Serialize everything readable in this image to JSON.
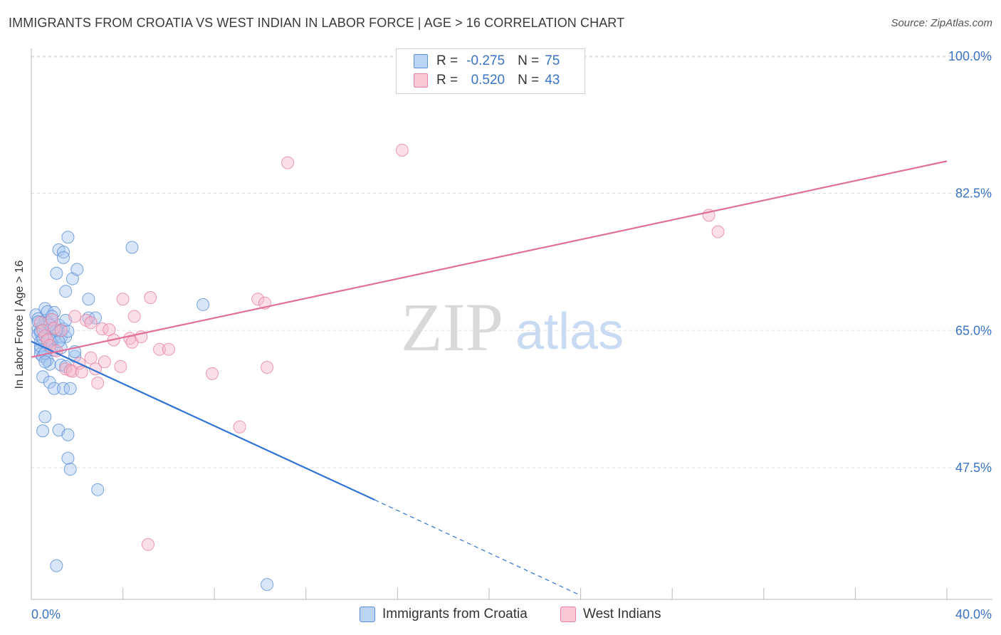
{
  "title": "IMMIGRANTS FROM CROATIA VS WEST INDIAN IN LABOR FORCE | AGE > 16 CORRELATION CHART",
  "source": "Source: ZipAtlas.com",
  "watermark": {
    "zip": "ZIP",
    "atlas": "atlas"
  },
  "legend": {
    "rows": [
      {
        "r_label": "R =",
        "r_value": "-0.275",
        "n_label": "N =",
        "n_value": "75"
      },
      {
        "r_label": "R =",
        "r_value": "0.520",
        "n_label": "N =",
        "n_value": "43"
      }
    ]
  },
  "bottom_legend": [
    "Immigrants from Croatia",
    "West Indians"
  ],
  "colors": {
    "blue_fill": "#a9c7f0",
    "blue_stroke": "#5b8fd6",
    "blue_line": "#2f74d0",
    "pink_fill": "#f6b8cb",
    "pink_stroke": "#e6819f",
    "pink_line": "#e0709a",
    "tick_label": "#3a74c4",
    "grid": "#dddddd"
  },
  "chart_data": {
    "type": "scatter",
    "xlabel": "",
    "ylabel": "In Labor Force | Age > 16",
    "xlim": [
      0,
      40
    ],
    "ylim": [
      30.7,
      100.8
    ],
    "x_tick_labels": [
      "0.0%",
      "40.0%"
    ],
    "y_ticks": [
      47.5,
      65.0,
      82.5,
      100.0
    ],
    "y_tick_labels": [
      "47.5%",
      "65.0%",
      "82.5%",
      "100.0%"
    ],
    "grid": true,
    "series": [
      {
        "name": "Immigrants from Croatia",
        "color": "blue",
        "points": [
          [
            0.2,
            67.0
          ],
          [
            0.3,
            66.5
          ],
          [
            0.3,
            65.2
          ],
          [
            0.4,
            64.6
          ],
          [
            0.4,
            63.6
          ],
          [
            0.4,
            62.6
          ],
          [
            0.4,
            62.0
          ],
          [
            0.5,
            61.7
          ],
          [
            0.5,
            59.1
          ],
          [
            0.5,
            52.2
          ],
          [
            0.6,
            67.8
          ],
          [
            0.6,
            66.2
          ],
          [
            0.6,
            64.8
          ],
          [
            0.6,
            54.0
          ],
          [
            0.7,
            67.4
          ],
          [
            0.7,
            63.8
          ],
          [
            0.7,
            61.2
          ],
          [
            0.8,
            60.7
          ],
          [
            0.8,
            58.4
          ],
          [
            0.9,
            66.4
          ],
          [
            0.9,
            65.3
          ],
          [
            0.9,
            63.4
          ],
          [
            0.9,
            62.9
          ],
          [
            1.0,
            67.3
          ],
          [
            1.0,
            64.3
          ],
          [
            1.0,
            57.6
          ],
          [
            1.1,
            72.3
          ],
          [
            1.1,
            35.0
          ],
          [
            1.2,
            75.3
          ],
          [
            1.2,
            65.7
          ],
          [
            1.2,
            64.9
          ],
          [
            1.2,
            52.3
          ],
          [
            1.3,
            64.1
          ],
          [
            1.3,
            60.6
          ],
          [
            1.4,
            75.0
          ],
          [
            1.4,
            74.3
          ],
          [
            1.4,
            65.2
          ],
          [
            1.4,
            57.6
          ],
          [
            1.5,
            64.2
          ],
          [
            1.5,
            60.4
          ],
          [
            1.5,
            70.0
          ],
          [
            1.6,
            76.9
          ],
          [
            1.6,
            64.9
          ],
          [
            1.6,
            51.7
          ],
          [
            1.6,
            48.7
          ],
          [
            1.7,
            47.3
          ],
          [
            1.7,
            57.6
          ],
          [
            1.8,
            71.6
          ],
          [
            1.9,
            61.7
          ],
          [
            1.9,
            62.3
          ],
          [
            2.0,
            72.8
          ],
          [
            2.5,
            66.6
          ],
          [
            2.5,
            69.0
          ],
          [
            2.8,
            66.6
          ],
          [
            2.9,
            44.7
          ],
          [
            4.4,
            75.6
          ],
          [
            7.5,
            68.3
          ],
          [
            10.3,
            32.6
          ],
          [
            0.3,
            64.5
          ],
          [
            0.5,
            65.5
          ],
          [
            0.7,
            66.0
          ],
          [
            0.8,
            64.0
          ],
          [
            1.0,
            62.5
          ],
          [
            1.1,
            65.0
          ],
          [
            0.4,
            63.0
          ],
          [
            0.6,
            62.1
          ],
          [
            0.9,
            66.8
          ],
          [
            1.3,
            62.8
          ],
          [
            0.5,
            64.0
          ],
          [
            0.3,
            66.1
          ],
          [
            0.8,
            65.7
          ],
          [
            1.2,
            63.6
          ],
          [
            0.6,
            61.0
          ],
          [
            1.5,
            66.3
          ],
          [
            0.4,
            64.9
          ]
        ]
      },
      {
        "name": "West Indians",
        "color": "pink",
        "points": [
          [
            0.4,
            66.0
          ],
          [
            0.5,
            65.0
          ],
          [
            0.6,
            64.3
          ],
          [
            0.7,
            63.8
          ],
          [
            0.8,
            63.1
          ],
          [
            0.9,
            66.4
          ],
          [
            1.0,
            65.3
          ],
          [
            1.1,
            62.4
          ],
          [
            1.3,
            65.0
          ],
          [
            1.5,
            60.1
          ],
          [
            1.7,
            59.9
          ],
          [
            1.8,
            59.8
          ],
          [
            1.9,
            66.8
          ],
          [
            2.1,
            60.8
          ],
          [
            2.2,
            59.7
          ],
          [
            2.4,
            66.3
          ],
          [
            2.6,
            61.5
          ],
          [
            2.8,
            60.1
          ],
          [
            2.9,
            58.3
          ],
          [
            3.1,
            65.2
          ],
          [
            3.2,
            61.0
          ],
          [
            3.4,
            65.1
          ],
          [
            3.6,
            63.8
          ],
          [
            3.9,
            60.4
          ],
          [
            4.0,
            69.0
          ],
          [
            4.3,
            64.0
          ],
          [
            4.4,
            63.5
          ],
          [
            4.5,
            66.8
          ],
          [
            4.8,
            64.2
          ],
          [
            5.1,
            37.7
          ],
          [
            5.2,
            69.2
          ],
          [
            5.6,
            62.6
          ],
          [
            6.0,
            62.6
          ],
          [
            7.9,
            59.5
          ],
          [
            9.1,
            52.7
          ],
          [
            9.9,
            69.0
          ],
          [
            10.2,
            68.5
          ],
          [
            10.3,
            60.3
          ],
          [
            11.2,
            86.4
          ],
          [
            16.2,
            88.0
          ],
          [
            29.6,
            79.7
          ],
          [
            30.0,
            77.6
          ],
          [
            2.6,
            66.0
          ]
        ]
      }
    ],
    "trendlines": [
      {
        "series": "Immigrants from Croatia",
        "solid": [
          [
            0.0,
            63.6
          ],
          [
            15.0,
            43.4
          ]
        ],
        "dashed": [
          [
            15.0,
            43.4
          ],
          [
            24.0,
            31.2
          ]
        ]
      },
      {
        "series": "West Indians",
        "solid": [
          [
            0.0,
            61.6
          ],
          [
            40.0,
            86.6
          ]
        ]
      }
    ]
  }
}
